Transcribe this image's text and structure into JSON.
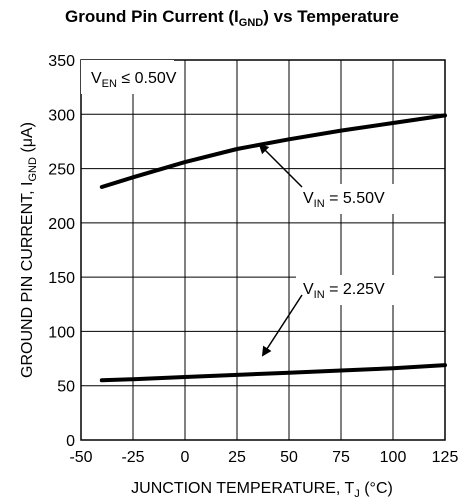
{
  "chart_data": {
    "type": "line",
    "title": {
      "prefix": "Ground Pin Current (I",
      "sub": "GND",
      "suffix": ") vs Temperature"
    },
    "xlabel": {
      "prefix": "JUNCTION TEMPERATURE, T",
      "sub": "J",
      "suffix": " (°C)"
    },
    "ylabel": {
      "prefix": "GROUND PIN CURRENT, I",
      "sub": "GND",
      "suffix": " (μA)"
    },
    "xlim": [
      -50,
      125
    ],
    "ylim": [
      0,
      350
    ],
    "x_ticks": [
      -50,
      -25,
      0,
      25,
      50,
      75,
      100,
      125
    ],
    "y_ticks": [
      0,
      50,
      100,
      150,
      200,
      250,
      300,
      350
    ],
    "grid": true,
    "series": [
      {
        "name": {
          "prefix": "V",
          "sub": "IN",
          "suffix": " = 5.50V"
        },
        "x": [
          -40,
          -25,
          0,
          25,
          50,
          75,
          100,
          125
        ],
        "y": [
          233,
          242,
          256,
          268,
          277,
          285,
          292,
          299
        ]
      },
      {
        "name": {
          "prefix": "V",
          "sub": "IN",
          "suffix": " = 2.25V"
        },
        "x": [
          -40,
          -25,
          0,
          25,
          50,
          75,
          100,
          125
        ],
        "y": [
          55,
          56,
          58,
          60,
          62,
          64,
          66,
          69
        ]
      }
    ],
    "annotations": [
      {
        "prefix": "V",
        "sub": "EN",
        "suffix": " ≤ 0.50V"
      }
    ]
  }
}
